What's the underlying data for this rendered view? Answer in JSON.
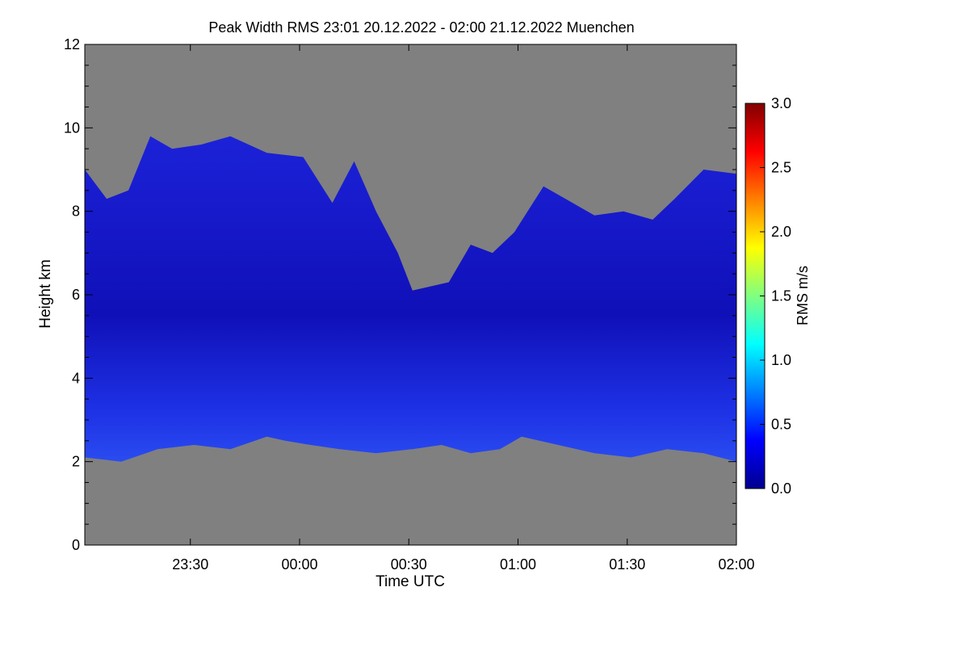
{
  "chart_data": {
    "type": "heatmap",
    "title": "Peak Width RMS   23:01 20.12.2022 - 02:00 21.12.2022 Muenchen",
    "xlabel": "Time UTC",
    "ylabel": "Height km",
    "x_ticks": [
      "23:30",
      "00:00",
      "00:30",
      "01:00",
      "01:30",
      "02:00"
    ],
    "x_tick_minutes": [
      29,
      59,
      89,
      119,
      149,
      179
    ],
    "xlim_minutes": [
      0,
      179
    ],
    "y_ticks": [
      0,
      2,
      4,
      6,
      8,
      10,
      12
    ],
    "ylim": [
      0,
      12
    ],
    "colorbar": {
      "label": "RMS m/s",
      "ticks": [
        "0.0",
        "0.5",
        "1.0",
        "1.5",
        "2.0",
        "2.5",
        "3.0"
      ],
      "range": [
        0,
        3.0
      ],
      "colors": [
        "#00008f",
        "#0000ff",
        "#0080ff",
        "#00ffff",
        "#80ff80",
        "#ffff00",
        "#ff8000",
        "#ff0000",
        "#800000"
      ]
    },
    "no_data_color": "#808080",
    "echo_color": "#1a1ad9",
    "cloud_top_km": [
      [
        0,
        9.0
      ],
      [
        6,
        8.3
      ],
      [
        12,
        8.5
      ],
      [
        18,
        9.8
      ],
      [
        24,
        9.5
      ],
      [
        32,
        9.6
      ],
      [
        40,
        9.8
      ],
      [
        50,
        9.4
      ],
      [
        60,
        9.3
      ],
      [
        68,
        8.2
      ],
      [
        74,
        9.2
      ],
      [
        80,
        8.0
      ],
      [
        86,
        7.0
      ],
      [
        90,
        6.1
      ],
      [
        100,
        6.3
      ],
      [
        106,
        7.2
      ],
      [
        112,
        7.0
      ],
      [
        118,
        7.5
      ],
      [
        126,
        8.6
      ],
      [
        134,
        8.2
      ],
      [
        140,
        7.9
      ],
      [
        148,
        8.0
      ],
      [
        156,
        7.8
      ],
      [
        162,
        8.3
      ],
      [
        170,
        9.0
      ],
      [
        179,
        8.9
      ]
    ],
    "cloud_base_km": [
      [
        0,
        2.1
      ],
      [
        10,
        2.0
      ],
      [
        20,
        2.3
      ],
      [
        30,
        2.4
      ],
      [
        40,
        2.3
      ],
      [
        50,
        2.6
      ],
      [
        55,
        2.5
      ],
      [
        62,
        2.4
      ],
      [
        70,
        2.3
      ],
      [
        80,
        2.2
      ],
      [
        90,
        2.3
      ],
      [
        98,
        2.4
      ],
      [
        106,
        2.2
      ],
      [
        114,
        2.3
      ],
      [
        120,
        2.6
      ],
      [
        130,
        2.4
      ],
      [
        140,
        2.2
      ],
      [
        150,
        2.1
      ],
      [
        160,
        2.3
      ],
      [
        170,
        2.2
      ],
      [
        179,
        2.0
      ]
    ]
  }
}
